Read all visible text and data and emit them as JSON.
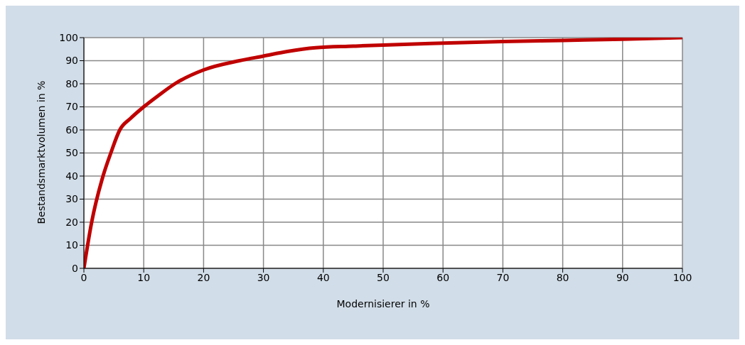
{
  "chart_data": {
    "type": "line",
    "xlabel": "Modernisierer in %",
    "ylabel": "Bestandsmarktvolumen in %",
    "series": [
      {
        "color": "#c00000",
        "x": [
          0,
          1.3,
          3.2,
          4.5,
          6,
          7.8,
          10,
          12.5,
          15.2,
          20,
          26,
          30,
          34,
          38.7,
          45,
          50,
          60,
          70,
          80,
          90,
          100
        ],
        "values": [
          0,
          20,
          40,
          50,
          60,
          65,
          70,
          75,
          80,
          86,
          90,
          92,
          94,
          95.6,
          96.3,
          96.8,
          97.6,
          98.3,
          98.8,
          99.3,
          100
        ]
      }
    ],
    "xlim": [
      0,
      100
    ],
    "xticks": [
      0,
      10,
      20,
      30,
      40,
      50,
      60,
      70,
      80,
      90,
      100
    ],
    "ylim": [
      0,
      100
    ],
    "yticks": [
      0,
      10,
      20,
      30,
      40,
      50,
      60,
      70,
      80,
      90,
      100
    ],
    "grid": true,
    "marker": "none",
    "line_style": "solid"
  }
}
